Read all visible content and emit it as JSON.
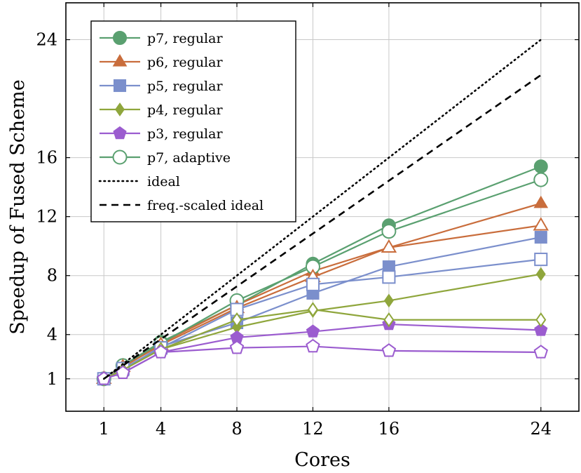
{
  "chart_data": {
    "type": "line",
    "title": "",
    "xlabel": "Cores",
    "ylabel": "Speedup of Fused Scheme",
    "xlim": [
      -1,
      26
    ],
    "ylim": [
      -1.2,
      26.5
    ],
    "xticks": [
      1,
      4,
      8,
      12,
      16,
      24
    ],
    "yticks": [
      1,
      4,
      8,
      12,
      16,
      24
    ],
    "grid": true,
    "legend_position": "top-left",
    "series": [
      {
        "name": "p7, regular",
        "color": "#5aa070",
        "marker": "circle",
        "filled": true,
        "legend": true,
        "x": [
          1,
          2,
          4,
          8,
          12,
          16,
          24
        ],
        "y": [
          1.0,
          1.9,
          3.5,
          6.0,
          8.8,
          11.4,
          15.4
        ]
      },
      {
        "name": "p6, regular",
        "color": "#c96d3c",
        "marker": "triangle",
        "filled": true,
        "legend": true,
        "x": [
          1,
          2,
          4,
          8,
          12,
          16,
          24
        ],
        "y": [
          1.0,
          1.9,
          3.4,
          6.0,
          8.3,
          9.9,
          12.9
        ]
      },
      {
        "name": "p5, regular",
        "color": "#7b8fcc",
        "marker": "square",
        "filled": true,
        "legend": true,
        "x": [
          1,
          2,
          4,
          8,
          12,
          16,
          24
        ],
        "y": [
          1.0,
          1.6,
          3.2,
          4.8,
          6.8,
          8.6,
          10.6
        ]
      },
      {
        "name": "p4, regular",
        "color": "#8fa63c",
        "marker": "diamond",
        "filled": true,
        "legend": true,
        "x": [
          1,
          2,
          4,
          8,
          12,
          16,
          24
        ],
        "y": [
          1.0,
          1.6,
          3.0,
          4.5,
          5.6,
          6.3,
          8.1
        ]
      },
      {
        "name": "p3, regular",
        "color": "#9b5ccf",
        "marker": "pentagon",
        "filled": true,
        "legend": true,
        "x": [
          1,
          2,
          4,
          8,
          12,
          16,
          24
        ],
        "y": [
          1.0,
          1.4,
          2.8,
          3.8,
          4.2,
          4.7,
          4.3
        ]
      },
      {
        "name": "p7, adaptive",
        "color": "#5aa070",
        "marker": "circle",
        "filled": false,
        "legend": true,
        "x": [
          1,
          2,
          4,
          8,
          12,
          16,
          24
        ],
        "y": [
          1.0,
          1.9,
          3.4,
          6.3,
          8.6,
          11.0,
          14.5
        ]
      },
      {
        "name": "",
        "color": "#c96d3c",
        "marker": "triangle",
        "filled": false,
        "legend": false,
        "x": [
          1,
          2,
          4,
          8,
          12,
          16,
          24
        ],
        "y": [
          1.0,
          1.8,
          3.3,
          5.8,
          7.9,
          9.9,
          11.4
        ]
      },
      {
        "name": "",
        "color": "#7b8fcc",
        "marker": "square",
        "filled": false,
        "legend": false,
        "x": [
          1,
          2,
          4,
          8,
          12,
          16,
          24
        ],
        "y": [
          1.0,
          1.7,
          3.1,
          5.7,
          7.4,
          7.9,
          9.1
        ]
      },
      {
        "name": "",
        "color": "#8fa63c",
        "marker": "diamond",
        "filled": false,
        "legend": false,
        "x": [
          1,
          2,
          4,
          8,
          12,
          16,
          24
        ],
        "y": [
          1.0,
          1.6,
          3.0,
          5.0,
          5.7,
          5.0,
          5.0
        ]
      },
      {
        "name": "",
        "color": "#9b5ccf",
        "marker": "pentagon",
        "filled": false,
        "legend": false,
        "x": [
          1,
          2,
          4,
          8,
          12,
          16,
          24
        ],
        "y": [
          1.0,
          1.4,
          2.8,
          3.1,
          3.2,
          2.9,
          2.8
        ]
      },
      {
        "name": "ideal",
        "color": "#000000",
        "marker": "none",
        "dash": "dotted",
        "legend": true,
        "x": [
          1,
          24
        ],
        "y": [
          1,
          24
        ]
      },
      {
        "name": "freq.-scaled ideal",
        "color": "#000000",
        "marker": "none",
        "dash": "dashed",
        "legend": true,
        "x": [
          1,
          24
        ],
        "y": [
          1,
          21.6
        ]
      }
    ]
  }
}
